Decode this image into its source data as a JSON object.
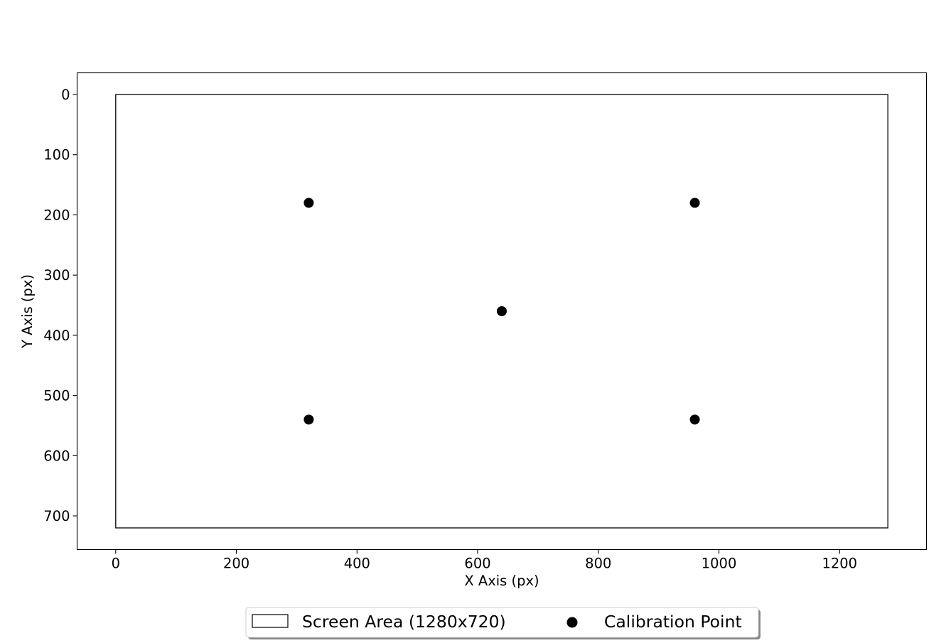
{
  "chart_data": {
    "type": "scatter",
    "xlabel": "X Axis (px)",
    "ylabel": "Y Axis (px)",
    "xlim": [
      -64,
      1344
    ],
    "ylim": [
      756,
      -36
    ],
    "y_inverted": true,
    "x_ticks": [
      0,
      200,
      400,
      600,
      800,
      1000,
      1200
    ],
    "y_ticks": [
      0,
      100,
      200,
      300,
      400,
      500,
      600,
      700
    ],
    "x_tick_labels": [
      "0",
      "200",
      "400",
      "600",
      "800",
      "1000",
      "1200"
    ],
    "y_tick_labels": [
      "0",
      "100",
      "200",
      "300",
      "400",
      "500",
      "600",
      "700"
    ],
    "grid": false,
    "legend_placement": "bottom-center-outside",
    "screen_area": {
      "name": "Screen Area (1280x720)",
      "x": 0,
      "y": 0,
      "width": 1280,
      "height": 720
    },
    "series": [
      {
        "name": "Calibration Point",
        "x": [
          320,
          960,
          640,
          320,
          960
        ],
        "y": [
          180,
          180,
          360,
          540,
          540
        ]
      }
    ],
    "legend": [
      "Screen Area (1280x720)",
      "Calibration Point"
    ]
  },
  "colors": {
    "point": "#000000",
    "rect_stroke": "#000000",
    "axes": "#000000"
  }
}
